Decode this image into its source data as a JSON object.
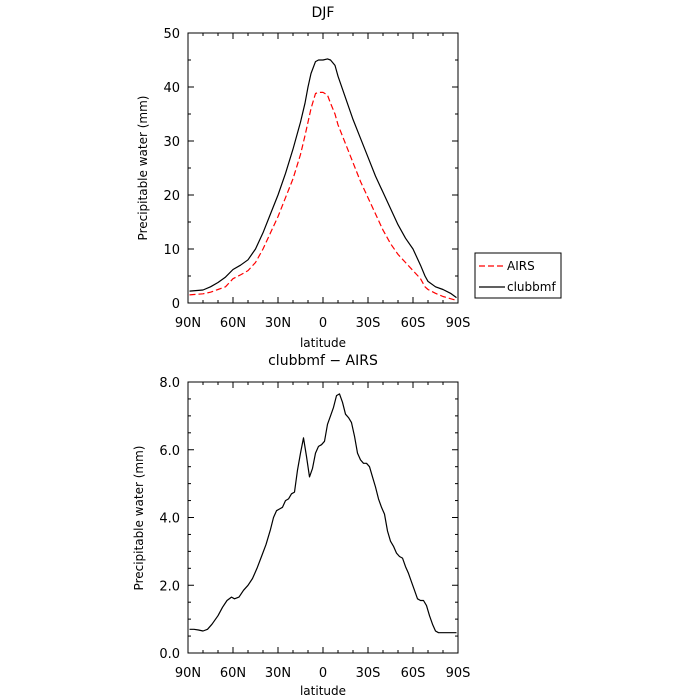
{
  "chart_data": [
    {
      "type": "line",
      "title": "DJF",
      "xlabel": "latitude",
      "ylabel": "Precipitable water (mm)",
      "x_tick_values": [
        -90,
        -60,
        -30,
        0,
        30,
        60,
        90
      ],
      "x_tick_labels": [
        "90N",
        "60N",
        "30N",
        "0",
        "30S",
        "60S",
        "90S"
      ],
      "xlim": [
        -90,
        90
      ],
      "ylim": [
        0,
        50
      ],
      "y_tick_values": [
        0,
        10,
        20,
        30,
        40,
        50
      ],
      "y_tick_labels": [
        "0",
        "10",
        "20",
        "30",
        "40",
        "50"
      ],
      "grid": false,
      "legend_position": "right",
      "series": [
        {
          "name": "AIRS",
          "color": "#ff0000",
          "dash": "dashed",
          "x": [
            -89,
            -85,
            -80,
            -75,
            -70,
            -65,
            -60,
            -55,
            -50,
            -45,
            -40,
            -35,
            -30,
            -25,
            -20,
            -15,
            -12,
            -10,
            -8,
            -5,
            -3,
            0,
            3,
            5,
            8,
            10,
            15,
            20,
            25,
            30,
            35,
            40,
            45,
            50,
            55,
            60,
            65,
            68,
            70,
            75,
            80,
            85,
            89
          ],
          "values": [
            1.5,
            1.6,
            1.7,
            2.0,
            2.5,
            3.0,
            4.5,
            5.2,
            6.0,
            7.5,
            10.0,
            13.0,
            16.0,
            19.5,
            23.0,
            27.5,
            31.0,
            33.5,
            36.0,
            38.8,
            39.0,
            39.0,
            38.5,
            37.0,
            35.0,
            33.0,
            29.5,
            26.0,
            22.5,
            19.5,
            16.5,
            13.5,
            11.0,
            9.0,
            7.5,
            6.0,
            4.5,
            3.0,
            2.5,
            1.8,
            1.2,
            0.8,
            0.5
          ]
        },
        {
          "name": "clubbmf",
          "color": "#000000",
          "dash": "solid",
          "x": [
            -89,
            -85,
            -80,
            -75,
            -70,
            -65,
            -60,
            -55,
            -50,
            -45,
            -40,
            -35,
            -30,
            -25,
            -20,
            -15,
            -12,
            -10,
            -8,
            -5,
            -3,
            0,
            3,
            5,
            8,
            10,
            15,
            20,
            25,
            30,
            35,
            40,
            45,
            50,
            55,
            60,
            65,
            68,
            70,
            75,
            80,
            85,
            89
          ],
          "values": [
            2.2,
            2.3,
            2.4,
            3.0,
            3.8,
            4.8,
            6.2,
            7.0,
            8.0,
            10.0,
            13.0,
            16.5,
            20.0,
            24.0,
            28.5,
            33.5,
            37.0,
            40.0,
            42.5,
            44.7,
            45.0,
            45.0,
            45.2,
            45.0,
            44.0,
            42.0,
            38.0,
            34.0,
            30.5,
            27.0,
            23.5,
            20.5,
            17.5,
            14.5,
            12.0,
            10.0,
            7.0,
            5.0,
            4.0,
            3.0,
            2.5,
            1.8,
            1.0
          ]
        }
      ]
    },
    {
      "type": "line",
      "title": "clubbmf − AIRS",
      "xlabel": "latitude",
      "ylabel": "Precipitable water (mm)",
      "x_tick_values": [
        -90,
        -60,
        -30,
        0,
        30,
        60,
        90
      ],
      "x_tick_labels": [
        "90N",
        "60N",
        "30N",
        "0",
        "30S",
        "60S",
        "90S"
      ],
      "xlim": [
        -90,
        90
      ],
      "ylim": [
        0,
        8
      ],
      "y_tick_values": [
        0,
        2,
        4,
        6,
        8
      ],
      "y_tick_labels": [
        "0.0",
        "2.0",
        "4.0",
        "6.0",
        "8.0"
      ],
      "grid": false,
      "series": [
        {
          "color": "#000000",
          "dash": "solid",
          "x": [
            -89,
            -86,
            -83,
            -80,
            -77,
            -74,
            -70,
            -67,
            -64,
            -61,
            -59,
            -56,
            -53,
            -50,
            -47,
            -44,
            -41,
            -38,
            -35,
            -33,
            -31,
            -29,
            -27,
            -25,
            -23,
            -21,
            -19,
            -17,
            -15,
            -13,
            -11,
            -9,
            -7,
            -5,
            -3,
            -1,
            1,
            3,
            5,
            7,
            9,
            11,
            13,
            15,
            17,
            19,
            21,
            23,
            25,
            27,
            29,
            31,
            33,
            35,
            37,
            39,
            41,
            43,
            45,
            47,
            49,
            51,
            53,
            55,
            57,
            59,
            61,
            63,
            65,
            67,
            69,
            71,
            73,
            75,
            77,
            79,
            81,
            83,
            85,
            87,
            89
          ],
          "values": [
            0.7,
            0.7,
            0.68,
            0.65,
            0.7,
            0.85,
            1.1,
            1.35,
            1.55,
            1.65,
            1.6,
            1.65,
            1.85,
            2.0,
            2.2,
            2.5,
            2.85,
            3.2,
            3.65,
            4.0,
            4.2,
            4.25,
            4.3,
            4.5,
            4.55,
            4.7,
            4.75,
            5.4,
            5.9,
            6.35,
            5.8,
            5.2,
            5.45,
            5.9,
            6.1,
            6.15,
            6.25,
            6.75,
            7.0,
            7.25,
            7.6,
            7.65,
            7.4,
            7.05,
            6.95,
            6.8,
            6.4,
            5.9,
            5.7,
            5.6,
            5.6,
            5.5,
            5.2,
            4.9,
            4.55,
            4.3,
            4.1,
            3.6,
            3.3,
            3.15,
            2.95,
            2.85,
            2.8,
            2.55,
            2.35,
            2.1,
            1.85,
            1.6,
            1.55,
            1.55,
            1.4,
            1.1,
            0.85,
            0.65,
            0.6,
            0.6,
            0.6,
            0.6,
            0.6,
            0.6,
            0.6
          ]
        }
      ]
    }
  ]
}
